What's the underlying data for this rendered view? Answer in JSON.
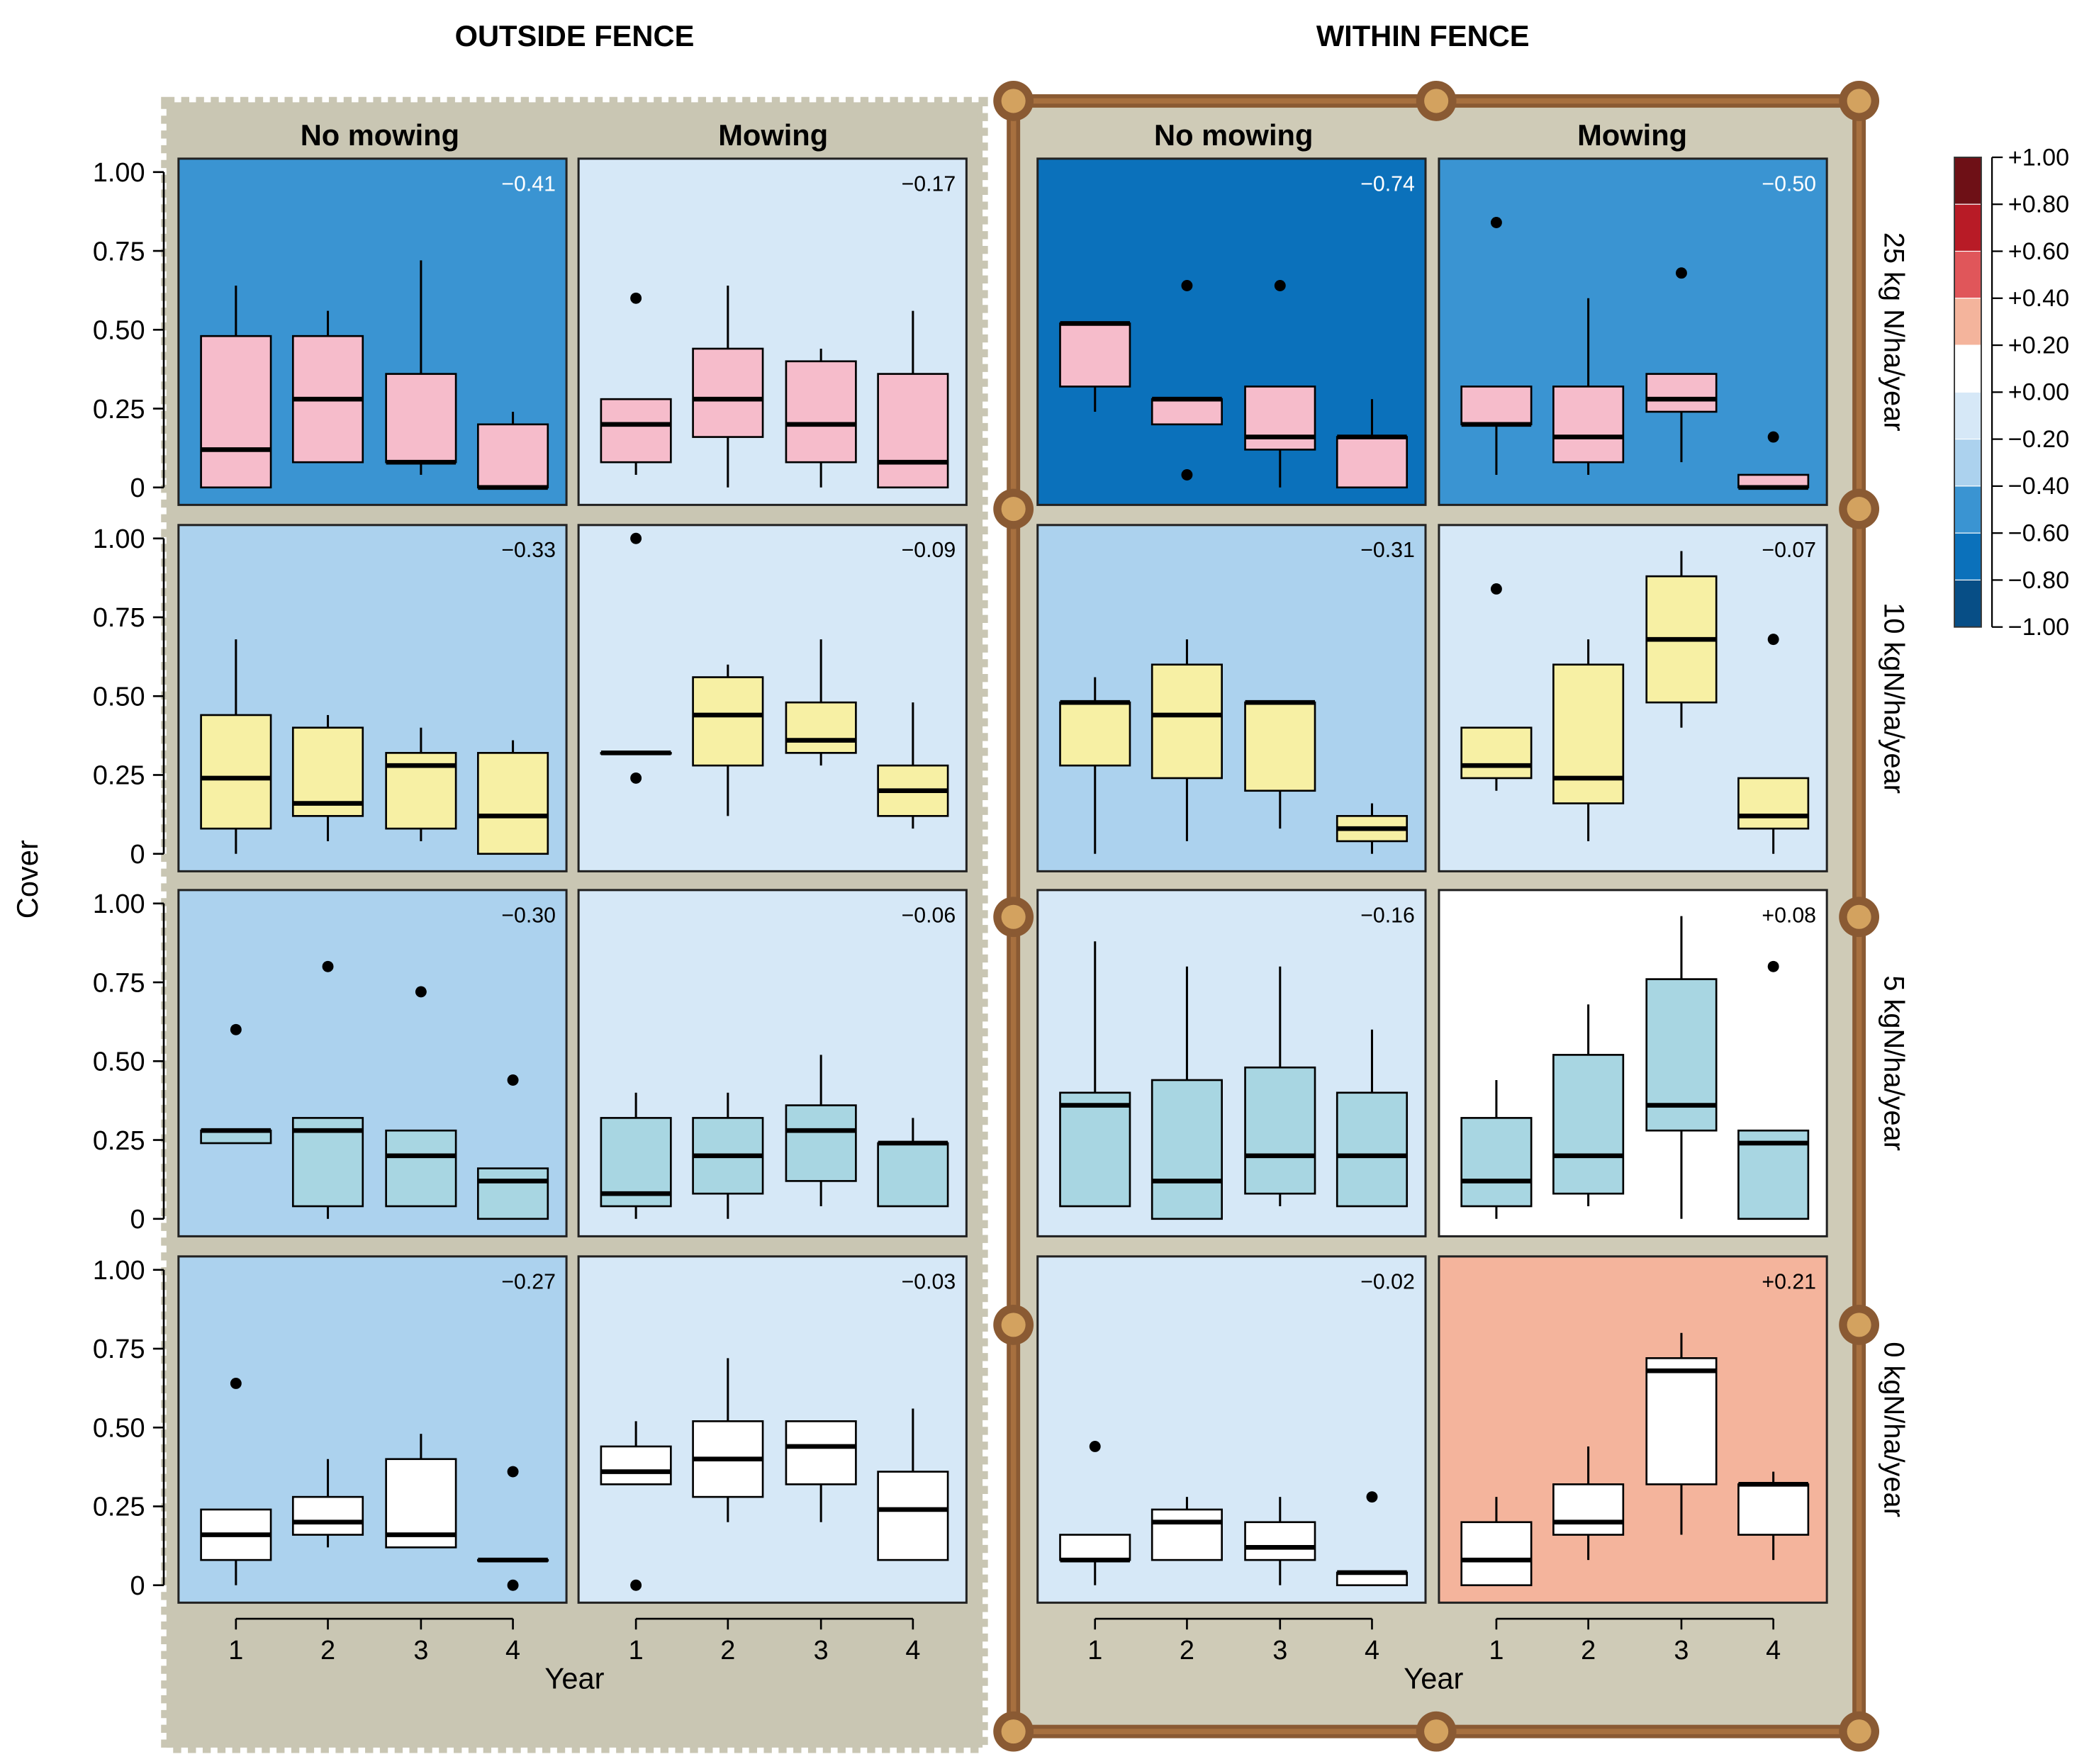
{
  "chart_data": {
    "type": "boxplot",
    "ylabel": "Cover",
    "xlabel": "Year",
    "x_ticks": [
      "1",
      "2",
      "3",
      "4"
    ],
    "y_ticks": [
      "0",
      "0.25",
      "0.50",
      "0.75",
      "1.00"
    ],
    "ylim": [
      0,
      1
    ],
    "groups": [
      {
        "label": "OUTSIDE FENCE",
        "treatments": [
          "No mowing",
          "Mowing"
        ]
      },
      {
        "label": "WITHIN FENCE",
        "treatments": [
          "No mowing",
          "Mowing"
        ]
      }
    ],
    "rows": [
      {
        "label": "25 kg N/ha/year",
        "box_fill": "#f6bccb"
      },
      {
        "label": "10 kgN/ha/year",
        "box_fill": "#f7f0a4"
      },
      {
        "label": "5 kgN/ha/year",
        "box_fill": "#a8d6e2"
      },
      {
        "label": "0 kgN/ha/year",
        "box_fill": "#ffffff"
      }
    ],
    "colorbar": {
      "ticks": [
        "+1.00",
        "+0.80",
        "+0.60",
        "+0.40",
        "+0.20",
        "+0.00",
        "−0.20",
        "−0.40",
        "−0.60",
        "−0.80",
        "−1.00"
      ],
      "colors": [
        "#6e1016",
        "#b81b26",
        "#e0565a",
        "#f4b49c",
        "#ffffff",
        "#d6e8f7",
        "#acd2ee",
        "#3a94d2",
        "#0b71bb",
        "#074e86"
      ]
    },
    "panels": [
      {
        "row": 0,
        "col": 0,
        "corr": "−0.41",
        "bg": "#3a94d2",
        "boxes": [
          {
            "min": 0,
            "q1": 0,
            "median": 0.12,
            "q3": 0.48,
            "max": 0.64,
            "outliers": []
          },
          {
            "min": 0.08,
            "q1": 0.08,
            "median": 0.28,
            "q3": 0.48,
            "max": 0.56,
            "outliers": []
          },
          {
            "min": 0.04,
            "q1": 0.08,
            "median": 0.08,
            "q3": 0.36,
            "max": 0.72,
            "outliers": []
          },
          {
            "min": 0,
            "q1": 0,
            "median": 0,
            "q3": 0.2,
            "max": 0.24,
            "outliers": []
          }
        ]
      },
      {
        "row": 0,
        "col": 1,
        "corr": "−0.17",
        "bg": "#d6e8f7",
        "boxes": [
          {
            "min": 0.04,
            "q1": 0.08,
            "median": 0.2,
            "q3": 0.28,
            "max": 0.28,
            "outliers": [
              0.6
            ]
          },
          {
            "min": 0,
            "q1": 0.16,
            "median": 0.28,
            "q3": 0.44,
            "max": 0.64,
            "outliers": []
          },
          {
            "min": 0,
            "q1": 0.08,
            "median": 0.2,
            "q3": 0.4,
            "max": 0.44,
            "outliers": []
          },
          {
            "min": 0,
            "q1": 0,
            "median": 0.08,
            "q3": 0.36,
            "max": 0.56,
            "outliers": []
          }
        ]
      },
      {
        "row": 0,
        "col": 2,
        "corr": "−0.74",
        "bg": "#0b71bb",
        "boxes": [
          {
            "min": 0.24,
            "q1": 0.32,
            "median": 0.52,
            "q3": 0.52,
            "max": 0.52,
            "outliers": []
          },
          {
            "min": 0.2,
            "q1": 0.2,
            "median": 0.28,
            "q3": 0.28,
            "max": 0.28,
            "outliers": [
              0.64,
              0.04
            ]
          },
          {
            "min": 0,
            "q1": 0.12,
            "median": 0.16,
            "q3": 0.32,
            "max": 0.32,
            "outliers": [
              0.64
            ]
          },
          {
            "min": 0,
            "q1": 0,
            "median": 0.16,
            "q3": 0.16,
            "max": 0.28,
            "outliers": []
          }
        ]
      },
      {
        "row": 0,
        "col": 3,
        "corr": "−0.50",
        "bg": "#3a94d2",
        "boxes": [
          {
            "min": 0.04,
            "q1": 0.2,
            "median": 0.2,
            "q3": 0.32,
            "max": 0.32,
            "outliers": [
              0.84
            ]
          },
          {
            "min": 0.04,
            "q1": 0.08,
            "median": 0.16,
            "q3": 0.32,
            "max": 0.6,
            "outliers": []
          },
          {
            "min": 0.08,
            "q1": 0.24,
            "median": 0.28,
            "q3": 0.36,
            "max": 0.36,
            "outliers": [
              0.68
            ]
          },
          {
            "min": 0,
            "q1": 0,
            "median": 0,
            "q3": 0.04,
            "max": 0.04,
            "outliers": [
              0.16
            ]
          }
        ]
      },
      {
        "row": 1,
        "col": 0,
        "corr": "−0.33",
        "bg": "#acd2ee",
        "boxes": [
          {
            "min": 0,
            "q1": 0.08,
            "median": 0.24,
            "q3": 0.44,
            "max": 0.68,
            "outliers": []
          },
          {
            "min": 0.04,
            "q1": 0.12,
            "median": 0.16,
            "q3": 0.4,
            "max": 0.44,
            "outliers": []
          },
          {
            "min": 0.04,
            "q1": 0.08,
            "median": 0.28,
            "q3": 0.32,
            "max": 0.4,
            "outliers": []
          },
          {
            "min": 0,
            "q1": 0,
            "median": 0.12,
            "q3": 0.32,
            "max": 0.36,
            "outliers": []
          }
        ]
      },
      {
        "row": 1,
        "col": 1,
        "corr": "−0.09",
        "bg": "#d6e8f7",
        "boxes": [
          {
            "min": 0.32,
            "q1": 0.32,
            "median": 0.32,
            "q3": 0.32,
            "max": 0.32,
            "outliers": [
              1.0,
              0.24
            ]
          },
          {
            "min": 0.12,
            "q1": 0.28,
            "median": 0.44,
            "q3": 0.56,
            "max": 0.6,
            "outliers": []
          },
          {
            "min": 0.28,
            "q1": 0.32,
            "median": 0.36,
            "q3": 0.48,
            "max": 0.68,
            "outliers": []
          },
          {
            "min": 0.08,
            "q1": 0.12,
            "median": 0.2,
            "q3": 0.28,
            "max": 0.48,
            "outliers": []
          }
        ]
      },
      {
        "row": 1,
        "col": 2,
        "corr": "−0.31",
        "bg": "#acd2ee",
        "boxes": [
          {
            "min": 0,
            "q1": 0.28,
            "median": 0.48,
            "q3": 0.48,
            "max": 0.56,
            "outliers": []
          },
          {
            "min": 0.04,
            "q1": 0.24,
            "median": 0.44,
            "q3": 0.6,
            "max": 0.68,
            "outliers": []
          },
          {
            "min": 0.08,
            "q1": 0.2,
            "median": 0.48,
            "q3": 0.48,
            "max": 0.48,
            "outliers": []
          },
          {
            "min": 0,
            "q1": 0.04,
            "median": 0.08,
            "q3": 0.12,
            "max": 0.16,
            "outliers": []
          }
        ]
      },
      {
        "row": 1,
        "col": 3,
        "corr": "−0.07",
        "bg": "#d6e8f7",
        "boxes": [
          {
            "min": 0.2,
            "q1": 0.24,
            "median": 0.28,
            "q3": 0.4,
            "max": 0.4,
            "outliers": [
              0.84
            ]
          },
          {
            "min": 0.04,
            "q1": 0.16,
            "median": 0.24,
            "q3": 0.6,
            "max": 0.68,
            "outliers": []
          },
          {
            "min": 0.4,
            "q1": 0.48,
            "median": 0.68,
            "q3": 0.88,
            "max": 0.96,
            "outliers": []
          },
          {
            "min": 0,
            "q1": 0.08,
            "median": 0.12,
            "q3": 0.24,
            "max": 0.24,
            "outliers": [
              0.68
            ]
          }
        ]
      },
      {
        "row": 2,
        "col": 0,
        "corr": "−0.30",
        "bg": "#acd2ee",
        "boxes": [
          {
            "min": 0.24,
            "q1": 0.24,
            "median": 0.28,
            "q3": 0.28,
            "max": 0.28,
            "outliers": [
              0.6
            ]
          },
          {
            "min": 0,
            "q1": 0.04,
            "median": 0.28,
            "q3": 0.32,
            "max": 0.32,
            "outliers": [
              0.8
            ]
          },
          {
            "min": 0.04,
            "q1": 0.04,
            "median": 0.2,
            "q3": 0.28,
            "max": 0.28,
            "outliers": [
              0.72
            ]
          },
          {
            "min": 0,
            "q1": 0,
            "median": 0.12,
            "q3": 0.16,
            "max": 0.16,
            "outliers": [
              0.44
            ]
          }
        ]
      },
      {
        "row": 2,
        "col": 1,
        "corr": "−0.06",
        "bg": "#d6e8f7",
        "boxes": [
          {
            "min": 0,
            "q1": 0.04,
            "median": 0.08,
            "q3": 0.32,
            "max": 0.4,
            "outliers": []
          },
          {
            "min": 0,
            "q1": 0.08,
            "median": 0.2,
            "q3": 0.32,
            "max": 0.4,
            "outliers": []
          },
          {
            "min": 0.04,
            "q1": 0.12,
            "median": 0.28,
            "q3": 0.36,
            "max": 0.52,
            "outliers": []
          },
          {
            "min": 0.04,
            "q1": 0.04,
            "median": 0.24,
            "q3": 0.24,
            "max": 0.32,
            "outliers": []
          }
        ]
      },
      {
        "row": 2,
        "col": 2,
        "corr": "−0.16",
        "bg": "#d6e8f7",
        "boxes": [
          {
            "min": 0.04,
            "q1": 0.04,
            "median": 0.36,
            "q3": 0.4,
            "max": 0.88,
            "outliers": []
          },
          {
            "min": 0,
            "q1": 0,
            "median": 0.12,
            "q3": 0.44,
            "max": 0.8,
            "outliers": []
          },
          {
            "min": 0.04,
            "q1": 0.08,
            "median": 0.2,
            "q3": 0.48,
            "max": 0.8,
            "outliers": []
          },
          {
            "min": 0.04,
            "q1": 0.04,
            "median": 0.2,
            "q3": 0.4,
            "max": 0.6,
            "outliers": []
          }
        ]
      },
      {
        "row": 2,
        "col": 3,
        "corr": "+0.08",
        "bg": "#ffffff",
        "boxes": [
          {
            "min": 0,
            "q1": 0.04,
            "median": 0.12,
            "q3": 0.32,
            "max": 0.44,
            "outliers": []
          },
          {
            "min": 0.04,
            "q1": 0.08,
            "median": 0.2,
            "q3": 0.52,
            "max": 0.68,
            "outliers": []
          },
          {
            "min": 0,
            "q1": 0.28,
            "median": 0.36,
            "q3": 0.76,
            "max": 0.96,
            "outliers": []
          },
          {
            "min": 0,
            "q1": 0,
            "median": 0.24,
            "q3": 0.28,
            "max": 0.28,
            "outliers": [
              0.8
            ]
          }
        ]
      },
      {
        "row": 3,
        "col": 0,
        "corr": "−0.27",
        "bg": "#acd2ee",
        "boxes": [
          {
            "min": 0,
            "q1": 0.08,
            "median": 0.16,
            "q3": 0.24,
            "max": 0.24,
            "outliers": [
              0.64
            ]
          },
          {
            "min": 0.12,
            "q1": 0.16,
            "median": 0.2,
            "q3": 0.28,
            "max": 0.4,
            "outliers": []
          },
          {
            "min": 0.12,
            "q1": 0.12,
            "median": 0.16,
            "q3": 0.4,
            "max": 0.48,
            "outliers": []
          },
          {
            "min": 0.08,
            "q1": 0.08,
            "median": 0.08,
            "q3": 0.08,
            "max": 0.08,
            "outliers": [
              0.36,
              0
            ]
          }
        ]
      },
      {
        "row": 3,
        "col": 1,
        "corr": "−0.03",
        "bg": "#d6e8f7",
        "boxes": [
          {
            "min": 0.32,
            "q1": 0.32,
            "median": 0.36,
            "q3": 0.44,
            "max": 0.52,
            "outliers": [
              0
            ]
          },
          {
            "min": 0.2,
            "q1": 0.28,
            "median": 0.4,
            "q3": 0.52,
            "max": 0.72,
            "outliers": []
          },
          {
            "min": 0.2,
            "q1": 0.32,
            "median": 0.44,
            "q3": 0.52,
            "max": 0.52,
            "outliers": []
          },
          {
            "min": 0.08,
            "q1": 0.08,
            "median": 0.24,
            "q3": 0.36,
            "max": 0.56,
            "outliers": []
          }
        ]
      },
      {
        "row": 3,
        "col": 2,
        "corr": "−0.02",
        "bg": "#d6e8f7",
        "boxes": [
          {
            "min": 0,
            "q1": 0.08,
            "median": 0.08,
            "q3": 0.16,
            "max": 0.16,
            "outliers": [
              0.44
            ]
          },
          {
            "min": 0.08,
            "q1": 0.08,
            "median": 0.2,
            "q3": 0.24,
            "max": 0.28,
            "outliers": []
          },
          {
            "min": 0,
            "q1": 0.08,
            "median": 0.12,
            "q3": 0.2,
            "max": 0.28,
            "outliers": []
          },
          {
            "min": 0,
            "q1": 0,
            "median": 0.04,
            "q3": 0.04,
            "max": 0.04,
            "outliers": [
              0.28
            ]
          }
        ]
      },
      {
        "row": 3,
        "col": 3,
        "corr": "+0.21",
        "bg": "#f4b49c",
        "boxes": [
          {
            "min": 0,
            "q1": 0,
            "median": 0.08,
            "q3": 0.2,
            "max": 0.28,
            "outliers": []
          },
          {
            "min": 0.08,
            "q1": 0.16,
            "median": 0.2,
            "q3": 0.32,
            "max": 0.44,
            "outliers": []
          },
          {
            "min": 0.16,
            "q1": 0.32,
            "median": 0.68,
            "q3": 0.72,
            "max": 0.8,
            "outliers": []
          },
          {
            "min": 0.08,
            "q1": 0.16,
            "median": 0.32,
            "q3": 0.32,
            "max": 0.36,
            "outliers": []
          }
        ]
      }
    ]
  }
}
